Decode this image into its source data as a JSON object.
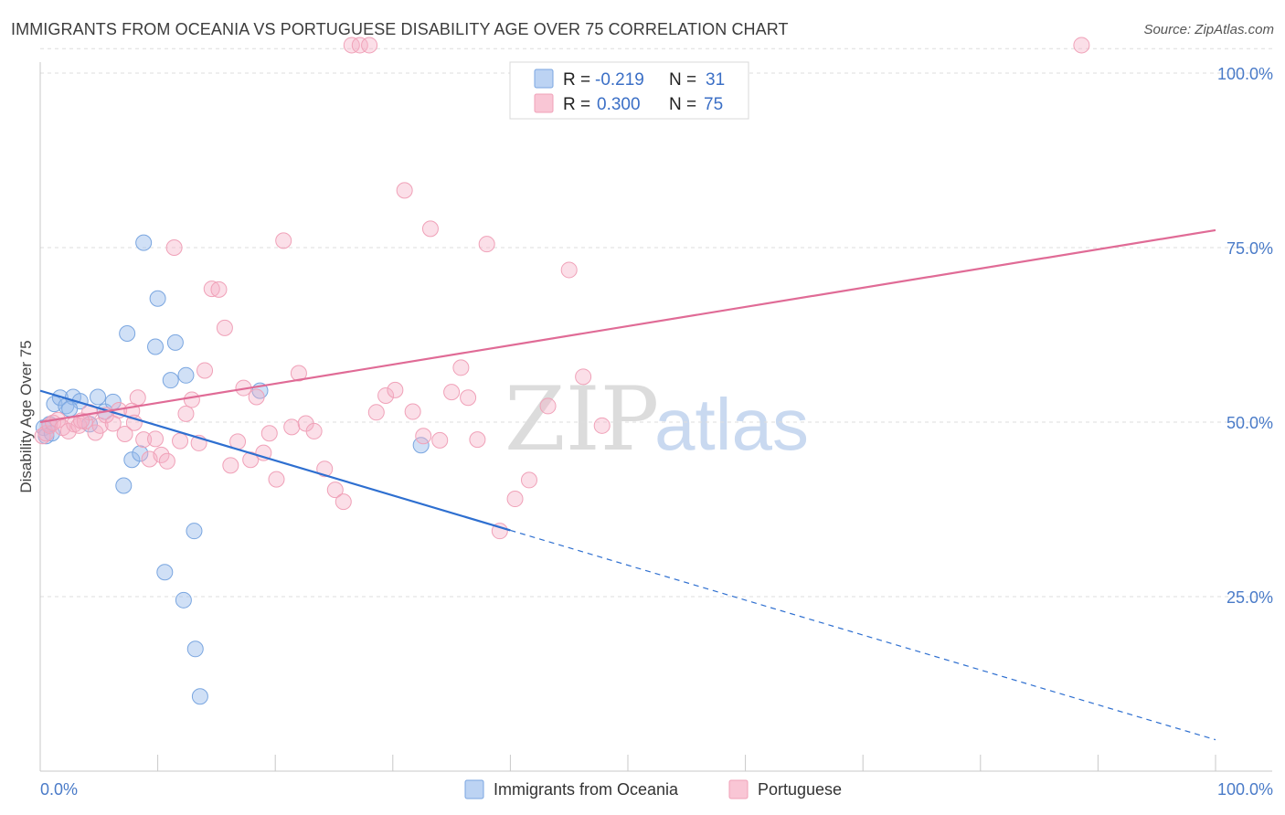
{
  "title": "IMMIGRANTS FROM OCEANIA VS PORTUGUESE DISABILITY AGE OVER 75 CORRELATION CHART",
  "source": "Source: ZipAtlas.com",
  "watermark": {
    "zip": "ZIP",
    "atlas": "atlas"
  },
  "chart_data": {
    "type": "scatter",
    "title": "IMMIGRANTS FROM OCEANIA VS PORTUGUESE DISABILITY AGE OVER 75 CORRELATION CHART",
    "xlabel": "",
    "ylabel": "Disability Age Over 75",
    "xlim": [
      0,
      100
    ],
    "ylim": [
      0,
      105
    ],
    "x_tick_labels": [
      "0.0%",
      "100.0%"
    ],
    "y_ticks": [
      25,
      50,
      75,
      100
    ],
    "y_tick_labels": [
      "25.0%",
      "50.0%",
      "75.0%",
      "100.0%"
    ],
    "grid": true,
    "legend_position": "top-center",
    "series": [
      {
        "name": "Immigrants from Oceania",
        "color": "#7aa6e0",
        "line_color": "#2e6fd0",
        "R": "-0.219",
        "N": "31",
        "trend": {
          "x0": 0,
          "y0": 54.5,
          "x1": 40,
          "y1": 34.5,
          "dashed_to_x": 100,
          "dashed_to_y": 4.5
        },
        "points": [
          [
            0.3,
            49.2
          ],
          [
            0.5,
            48.0
          ],
          [
            0.8,
            49.7
          ],
          [
            1.2,
            52.6
          ],
          [
            1.7,
            53.5
          ],
          [
            2.2,
            52.3
          ],
          [
            2.8,
            53.6
          ],
          [
            3.4,
            53.0
          ],
          [
            4.2,
            49.7
          ],
          [
            4.9,
            53.6
          ],
          [
            5.5,
            51.5
          ],
          [
            6.2,
            52.9
          ],
          [
            7.1,
            40.9
          ],
          [
            7.4,
            62.7
          ],
          [
            7.8,
            44.6
          ],
          [
            8.5,
            45.5
          ],
          [
            8.8,
            75.7
          ],
          [
            9.8,
            60.8
          ],
          [
            10.0,
            67.7
          ],
          [
            11.1,
            56.0
          ],
          [
            11.5,
            61.4
          ],
          [
            12.4,
            56.7
          ],
          [
            13.1,
            34.4
          ],
          [
            10.6,
            28.5
          ],
          [
            12.2,
            24.5
          ],
          [
            13.2,
            17.5
          ],
          [
            13.6,
            10.7
          ],
          [
            18.7,
            54.5
          ],
          [
            32.4,
            46.7
          ],
          [
            1.0,
            48.4
          ],
          [
            2.5,
            51.9
          ]
        ]
      },
      {
        "name": "Portuguese",
        "color": "#f0a1b8",
        "line_color": "#e06b96",
        "R": "0.300",
        "N": "75",
        "trend": {
          "x0": 0,
          "y0": 50.0,
          "x1": 100,
          "y1": 77.5
        },
        "points": [
          [
            0.2,
            48.0
          ],
          [
            0.5,
            48.4
          ],
          [
            0.8,
            49.5
          ],
          [
            1.1,
            49.9
          ],
          [
            1.5,
            50.3
          ],
          [
            1.9,
            49.2
          ],
          [
            2.4,
            48.7
          ],
          [
            2.9,
            49.7
          ],
          [
            3.3,
            49.5
          ],
          [
            3.8,
            50.1
          ],
          [
            4.2,
            51.4
          ],
          [
            4.7,
            48.5
          ],
          [
            5.1,
            49.5
          ],
          [
            5.6,
            51.0
          ],
          [
            6.2,
            49.8
          ],
          [
            6.7,
            51.7
          ],
          [
            7.2,
            48.3
          ],
          [
            7.8,
            51.6
          ],
          [
            8.3,
            53.5
          ],
          [
            8.8,
            47.5
          ],
          [
            9.3,
            44.7
          ],
          [
            9.8,
            47.6
          ],
          [
            10.3,
            45.3
          ],
          [
            10.8,
            44.4
          ],
          [
            11.4,
            75.0
          ],
          [
            11.9,
            47.3
          ],
          [
            12.4,
            51.2
          ],
          [
            12.9,
            53.2
          ],
          [
            13.5,
            47.0
          ],
          [
            14.0,
            57.4
          ],
          [
            14.6,
            69.1
          ],
          [
            15.2,
            69.0
          ],
          [
            15.7,
            63.5
          ],
          [
            16.2,
            43.8
          ],
          [
            16.8,
            47.2
          ],
          [
            17.3,
            54.9
          ],
          [
            17.9,
            44.6
          ],
          [
            18.4,
            53.6
          ],
          [
            19.0,
            45.6
          ],
          [
            19.5,
            48.4
          ],
          [
            20.1,
            41.8
          ],
          [
            20.7,
            76.0
          ],
          [
            21.4,
            49.3
          ],
          [
            22.0,
            57.0
          ],
          [
            22.6,
            49.8
          ],
          [
            23.3,
            48.7
          ],
          [
            24.2,
            43.3
          ],
          [
            25.1,
            40.3
          ],
          [
            25.8,
            38.6
          ],
          [
            26.5,
            104.0
          ],
          [
            27.2,
            104.0
          ],
          [
            28.0,
            104.0
          ],
          [
            28.6,
            51.4
          ],
          [
            29.4,
            53.8
          ],
          [
            30.2,
            54.6
          ],
          [
            31.0,
            83.2
          ],
          [
            31.7,
            51.5
          ],
          [
            32.6,
            48.0
          ],
          [
            33.2,
            77.7
          ],
          [
            34.0,
            47.4
          ],
          [
            35.0,
            54.3
          ],
          [
            35.8,
            57.8
          ],
          [
            36.4,
            53.5
          ],
          [
            37.2,
            47.5
          ],
          [
            38.0,
            75.5
          ],
          [
            39.1,
            34.4
          ],
          [
            40.4,
            39.0
          ],
          [
            41.6,
            41.7
          ],
          [
            43.2,
            52.3
          ],
          [
            45.0,
            71.8
          ],
          [
            46.2,
            56.5
          ],
          [
            47.8,
            49.5
          ],
          [
            88.6,
            104.0
          ],
          [
            3.5,
            50.2
          ],
          [
            8.0,
            49.9
          ]
        ]
      }
    ]
  }
}
